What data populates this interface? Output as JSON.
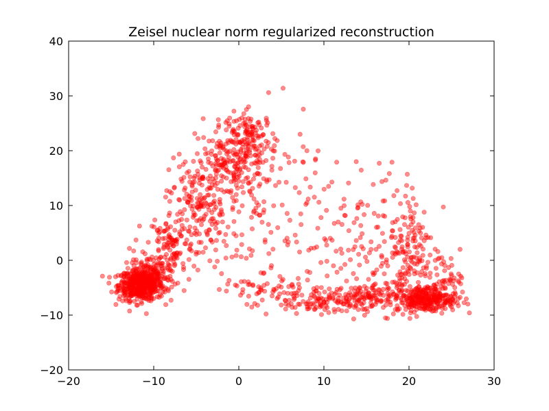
{
  "chart_data": {
    "type": "scatter",
    "title": "Zeisel nuclear norm regularized reconstruction",
    "xlabel": "",
    "ylabel": "",
    "xlim": [
      -20,
      30
    ],
    "ylim": [
      -20,
      40
    ],
    "xticks": [
      "−20",
      "−10",
      "0",
      "10",
      "20",
      "30"
    ],
    "yticks": [
      "−20",
      "−10",
      "0",
      "10",
      "20",
      "30",
      "40"
    ],
    "grid": false,
    "legend": "none",
    "marker_color": "#ff0000",
    "marker_opacity": 0.45,
    "clusters": [
      {
        "cx": -11.5,
        "cy": -4.5,
        "sx": 1.3,
        "sy": 1.4,
        "n": 520
      },
      {
        "cx": -10,
        "cy": -2.5,
        "sx": 1.5,
        "sy": 1.8,
        "n": 90
      },
      {
        "cx": -8,
        "cy": 3,
        "sx": 1.4,
        "sy": 3.0,
        "n": 110
      },
      {
        "cx": -5,
        "cy": 11,
        "sx": 1.6,
        "sy": 4.0,
        "n": 150
      },
      {
        "cx": -1,
        "cy": 18,
        "sx": 2.0,
        "sy": 3.5,
        "n": 160
      },
      {
        "cx": 1.5,
        "cy": 22,
        "sx": 1.5,
        "sy": 2.5,
        "n": 120
      },
      {
        "cx": 3,
        "cy": 12,
        "sx": 4.0,
        "sy": 6.0,
        "n": 90
      },
      {
        "cx": 0,
        "cy": 2,
        "sx": 5.0,
        "sy": 4.0,
        "n": 60
      },
      {
        "cx": 2,
        "cy": -5.5,
        "sx": 3.0,
        "sy": 1.2,
        "n": 40
      },
      {
        "cx": 9.5,
        "cy": -7,
        "sx": 3.0,
        "sy": 1.3,
        "n": 110
      },
      {
        "cx": 14.5,
        "cy": -7,
        "sx": 2.2,
        "sy": 1.3,
        "n": 110
      },
      {
        "cx": 12,
        "cy": 2,
        "sx": 3.5,
        "sy": 4.5,
        "n": 60
      },
      {
        "cx": 18,
        "cy": -1,
        "sx": 1.5,
        "sy": 4.0,
        "n": 70
      },
      {
        "cx": 20.5,
        "cy": 3,
        "sx": 1.2,
        "sy": 4.5,
        "n": 90
      },
      {
        "cx": 22,
        "cy": -7,
        "sx": 1.8,
        "sy": 1.2,
        "n": 300
      },
      {
        "cx": 24,
        "cy": -3,
        "sx": 1.0,
        "sy": 2.0,
        "n": 50
      },
      {
        "cx": 17,
        "cy": 11,
        "sx": 2.5,
        "sy": 3.0,
        "n": 25
      }
    ],
    "outliers": [
      [
        5.2,
        31.4
      ],
      [
        3.5,
        30.6
      ],
      [
        7.2,
        23.0
      ],
      [
        8.0,
        20.0
      ],
      [
        9.0,
        18.3
      ],
      [
        11.5,
        17.9
      ],
      [
        13.8,
        18.0
      ],
      [
        16.5,
        17.7
      ],
      [
        18.0,
        17.9
      ],
      [
        19.8,
        15.7
      ],
      [
        6.5,
        -6.0
      ],
      [
        7.0,
        -8.0
      ],
      [
        3.2,
        -9.8
      ],
      [
        13.5,
        -10.7
      ],
      [
        12.0,
        9.5
      ],
      [
        8.0,
        10.5
      ],
      [
        14.5,
        10.2
      ],
      [
        26.0,
        2.0
      ],
      [
        26.2,
        -3.2
      ],
      [
        25.0,
        -8.5
      ]
    ]
  }
}
